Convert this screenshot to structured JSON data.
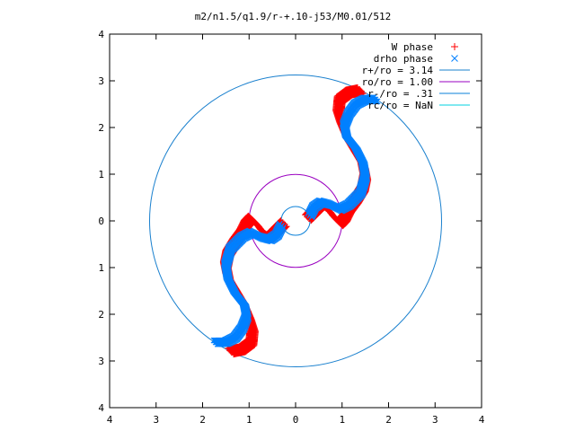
{
  "chart_data": {
    "type": "scatter",
    "title": "m2/n1.5/q1.9/r-+.10-j53/M0.01/512",
    "xlim": [
      -4,
      4
    ],
    "ylim": [
      -4,
      4
    ],
    "x_ticks": [
      "4",
      "3",
      "2",
      "1",
      "0",
      "1",
      "2",
      "3",
      "4"
    ],
    "y_ticks": [
      "4",
      "3",
      "2",
      "1",
      "0",
      "1",
      "2",
      "3",
      "4"
    ],
    "grid": false,
    "legend_position": "top-right",
    "series": [
      {
        "name": "W phase",
        "marker": "plus",
        "color": "#ff0000",
        "centerline": [
          [
            1.4,
            2.8
          ],
          [
            1.15,
            2.75
          ],
          [
            0.95,
            2.6
          ],
          [
            0.92,
            2.3
          ],
          [
            1.0,
            2.05
          ],
          [
            1.15,
            1.7
          ],
          [
            1.3,
            1.45
          ],
          [
            1.45,
            1.2
          ],
          [
            1.5,
            0.95
          ],
          [
            1.45,
            0.7
          ],
          [
            1.3,
            0.45
          ],
          [
            1.15,
            0.25
          ],
          [
            1.05,
            0.05
          ],
          [
            0.95,
            -0.05
          ],
          [
            0.85,
            0.05
          ],
          [
            0.7,
            0.25
          ],
          [
            0.55,
            0.35
          ],
          [
            0.4,
            0.2
          ],
          [
            0.25,
            0.05
          ],
          [
            -0.25,
            -0.05
          ],
          [
            -0.4,
            -0.2
          ],
          [
            -0.55,
            -0.35
          ],
          [
            -0.7,
            -0.25
          ],
          [
            -0.85,
            -0.05
          ],
          [
            -0.95,
            0.05
          ],
          [
            -1.05,
            -0.05
          ],
          [
            -1.15,
            -0.25
          ],
          [
            -1.3,
            -0.45
          ],
          [
            -1.45,
            -0.7
          ],
          [
            -1.5,
            -0.95
          ],
          [
            -1.45,
            -1.2
          ],
          [
            -1.3,
            -1.45
          ],
          [
            -1.15,
            -1.7
          ],
          [
            -1.0,
            -2.05
          ],
          [
            -0.92,
            -2.3
          ],
          [
            -0.95,
            -2.6
          ],
          [
            -1.15,
            -2.75
          ],
          [
            -1.4,
            -2.8
          ]
        ]
      },
      {
        "name": "drho phase",
        "marker": "cross",
        "color": "#0080ff",
        "centerline": [
          [
            1.72,
            2.6
          ],
          [
            1.5,
            2.6
          ],
          [
            1.3,
            2.5
          ],
          [
            1.15,
            2.3
          ],
          [
            1.05,
            2.05
          ],
          [
            1.1,
            1.8
          ],
          [
            1.3,
            1.55
          ],
          [
            1.45,
            1.25
          ],
          [
            1.5,
            0.95
          ],
          [
            1.4,
            0.6
          ],
          [
            1.15,
            0.35
          ],
          [
            0.95,
            0.25
          ],
          [
            0.75,
            0.35
          ],
          [
            0.55,
            0.4
          ],
          [
            0.4,
            0.3
          ],
          [
            0.3,
            0.1
          ],
          [
            -0.3,
            -0.1
          ],
          [
            -0.4,
            -0.3
          ],
          [
            -0.55,
            -0.4
          ],
          [
            -0.75,
            -0.35
          ],
          [
            -0.95,
            -0.25
          ],
          [
            -1.15,
            -0.35
          ],
          [
            -1.4,
            -0.6
          ],
          [
            -1.5,
            -0.95
          ],
          [
            -1.45,
            -1.25
          ],
          [
            -1.3,
            -1.55
          ],
          [
            -1.1,
            -1.8
          ],
          [
            -1.05,
            -2.05
          ],
          [
            -1.15,
            -2.3
          ],
          [
            -1.3,
            -2.5
          ],
          [
            -1.5,
            -2.6
          ],
          [
            -1.72,
            -2.6
          ]
        ]
      },
      {
        "name": "r+/ro = 3.14",
        "color": "#1a80ce",
        "radius": 3.14
      },
      {
        "name": "ro/ro = 1.00",
        "color": "#9a00c0",
        "radius": 1.0
      },
      {
        "name": "r-/ro = .31",
        "color": "#0a80d8",
        "radius": 0.31
      },
      {
        "name": "rc/ro = NaN",
        "color": "#00d0e0",
        "radius": null
      }
    ]
  }
}
